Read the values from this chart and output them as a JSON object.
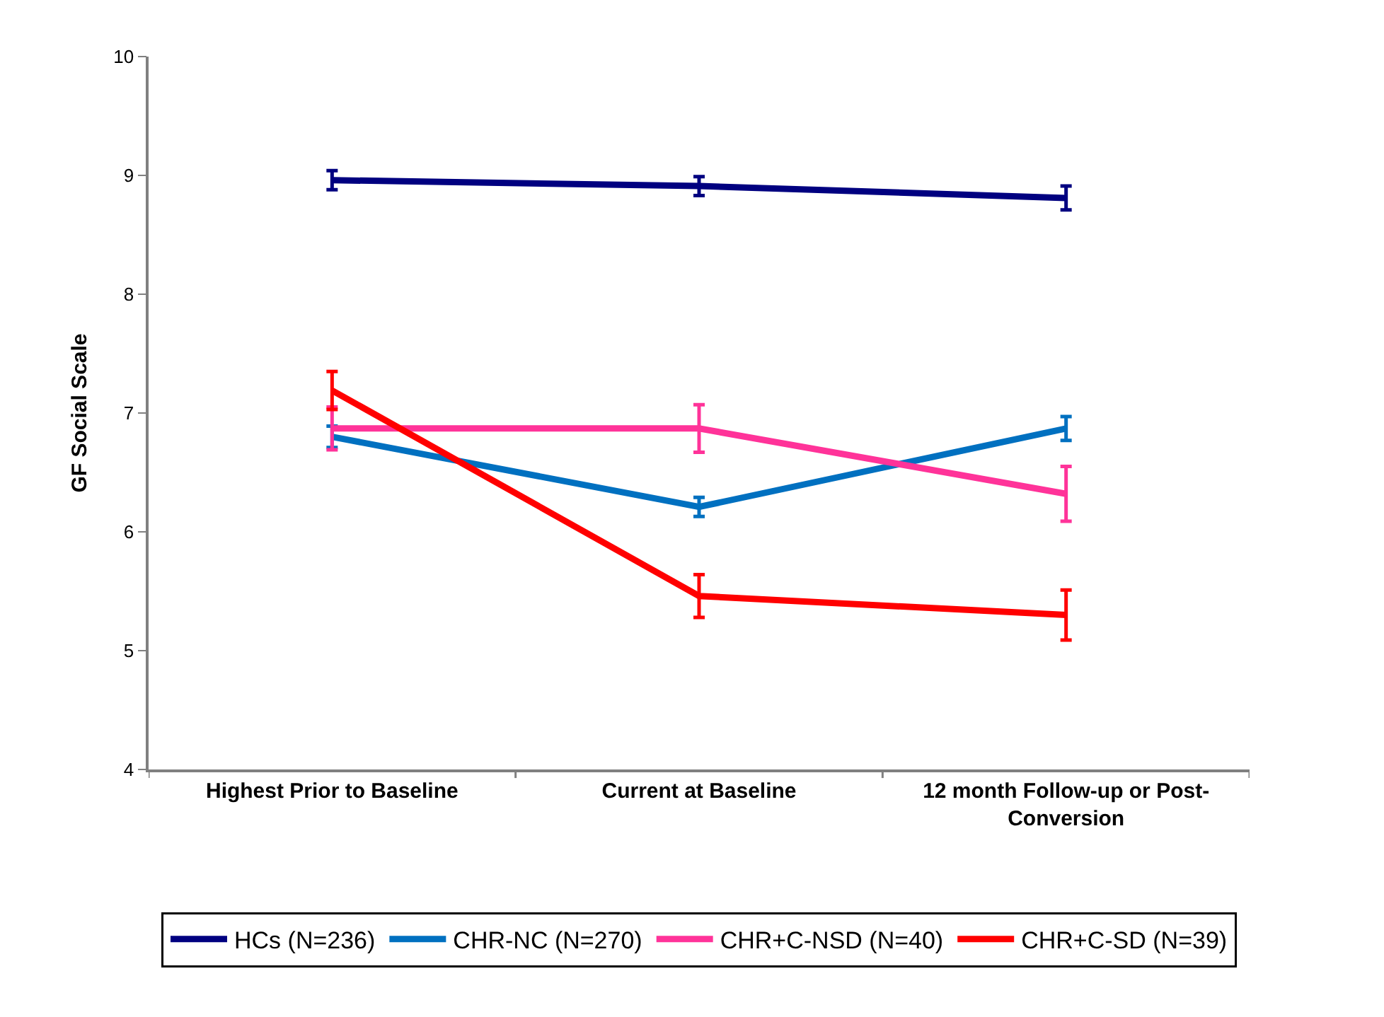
{
  "chart_data": {
    "type": "line",
    "ylabel": "GF Social Scale",
    "categories": [
      "Highest Prior to Baseline",
      "Current at Baseline",
      "12 month Follow-up or Post-Conversion"
    ],
    "ylim": [
      4,
      10
    ],
    "yticks": [
      4,
      5,
      6,
      7,
      8,
      9,
      10
    ],
    "legend": "bottom",
    "marker": "none",
    "line_style": "solid",
    "series": [
      {
        "name": "HCs (N=236)",
        "color": "#000080",
        "values": [
          8.96,
          8.91,
          8.81
        ],
        "errors": [
          0.08,
          0.08,
          0.1
        ]
      },
      {
        "name": "CHR-NC (N=270)",
        "color": "#0070c0",
        "values": [
          6.8,
          6.21,
          6.87
        ],
        "errors": [
          0.09,
          0.08,
          0.1
        ]
      },
      {
        "name": "CHR+C-NSD (N=40)",
        "color": "#ff3399",
        "values": [
          6.87,
          6.87,
          6.32
        ],
        "errors": [
          0.18,
          0.2,
          0.23
        ]
      },
      {
        "name": "CHR+C-SD (N=39)",
        "color": "#ff0000",
        "values": [
          7.19,
          5.46,
          5.3
        ],
        "errors": [
          0.16,
          0.18,
          0.21
        ]
      }
    ]
  }
}
